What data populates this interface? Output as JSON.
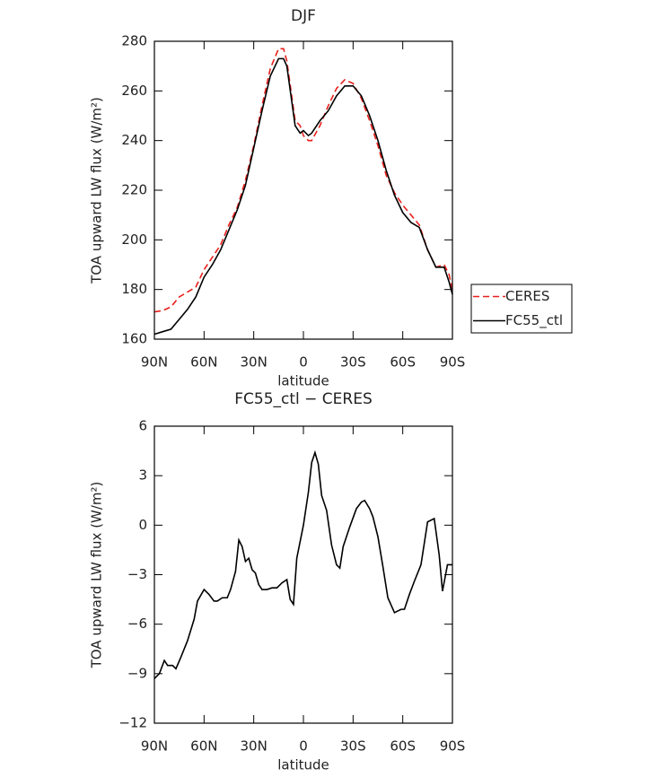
{
  "chart_data": [
    {
      "type": "line",
      "title": "DJF",
      "xlabel": "latitude",
      "ylabel": "TOA upward LW flux (W/m²)",
      "x": [
        90,
        85,
        80,
        75,
        70,
        65,
        60,
        55,
        50,
        45,
        40,
        35,
        30,
        25,
        20,
        15,
        12,
        10,
        5,
        2,
        0,
        -3,
        -5,
        -10,
        -15,
        -20,
        -25,
        -30,
        -35,
        -40,
        -45,
        -50,
        -55,
        -60,
        -65,
        -70,
        -75,
        -80,
        -85,
        -88,
        -90
      ],
      "series": [
        {
          "name": "CERES",
          "color": "#e8201c",
          "dash": true,
          "values": [
            171,
            171.5,
            173,
            177,
            179,
            181,
            188,
            193,
            198,
            206,
            213,
            224,
            238,
            254,
            269,
            277,
            277,
            272,
            248,
            246,
            242,
            240,
            240,
            246,
            254,
            261,
            264.5,
            263,
            257,
            248,
            238,
            226,
            219,
            214,
            210,
            206,
            196,
            189,
            190,
            186,
            180
          ]
        },
        {
          "name": "FC55_ctl",
          "color": "#000000",
          "dash": false,
          "values": [
            162,
            163,
            164,
            168,
            172,
            177,
            185,
            190,
            196,
            204,
            212,
            222,
            237,
            252,
            266,
            273,
            273,
            270,
            246,
            243,
            244,
            242,
            243,
            248,
            252,
            258,
            262,
            262,
            258,
            250,
            240,
            228,
            218,
            211,
            207,
            205,
            196,
            189,
            189,
            183,
            178
          ]
        }
      ],
      "xlim": [
        90,
        -90
      ],
      "xticks": [
        {
          "value": 90,
          "label": "90N"
        },
        {
          "value": 60,
          "label": "60N"
        },
        {
          "value": 30,
          "label": "30N"
        },
        0,
        {
          "value": -30,
          "label": "30S"
        },
        {
          "value": -60,
          "label": "60S"
        },
        {
          "value": -90,
          "label": "90S"
        }
      ],
      "ylim": [
        160,
        280
      ],
      "yticks": [
        160,
        180,
        200,
        220,
        240,
        260,
        280
      ],
      "legend": "right"
    },
    {
      "type": "line",
      "title": "FC55_ctl − CERES",
      "xlabel": "latitude",
      "ylabel": "TOA upward LW flux (W/m²)",
      "x": [
        90,
        87,
        84,
        82,
        79,
        77,
        74,
        70,
        66,
        64,
        60,
        57,
        54,
        52,
        49,
        46,
        44,
        41,
        39,
        37,
        35,
        33,
        31,
        29,
        27,
        25,
        22,
        19,
        16,
        13,
        10,
        8,
        6,
        4,
        0,
        -3,
        -5,
        -7,
        -9,
        -11,
        -14,
        -17,
        -20,
        -22,
        -24,
        -28,
        -32,
        -35,
        -37,
        -40,
        -42,
        -45,
        -48,
        -51,
        -55,
        -59,
        -61,
        -64,
        -67,
        -71,
        -75,
        -79,
        -82,
        -84,
        -87,
        -90
      ],
      "series": [
        {
          "color": "#000000",
          "dash": false,
          "values": [
            -9.3,
            -9.0,
            -8.2,
            -8.5,
            -8.5,
            -8.7,
            -8.0,
            -7.0,
            -5.7,
            -4.6,
            -3.9,
            -4.2,
            -4.6,
            -4.6,
            -4.4,
            -4.4,
            -3.9,
            -2.8,
            -0.9,
            -1.3,
            -2.2,
            -2.0,
            -2.7,
            -2.9,
            -3.6,
            -3.9,
            -3.9,
            -3.8,
            -3.8,
            -3.5,
            -3.3,
            -4.5,
            -4.8,
            -2.0,
            0,
            2.0,
            3.8,
            4.4,
            3.7,
            1.8,
            0.9,
            -1.2,
            -2.4,
            -2.6,
            -1.3,
            -0.1,
            1.0,
            1.4,
            1.5,
            1.0,
            0.5,
            -0.7,
            -2.5,
            -4.4,
            -5.3,
            -5.1,
            -5.1,
            -4.2,
            -3.4,
            -2.4,
            0.2,
            0.4,
            -1.8,
            -4.0,
            -2.4,
            -2.4
          ]
        }
      ],
      "xlim": [
        90,
        -90
      ],
      "xticks": [
        {
          "value": 90,
          "label": "90N"
        },
        {
          "value": 60,
          "label": "60N"
        },
        {
          "value": 30,
          "label": "30N"
        },
        0,
        {
          "value": -30,
          "label": "30S"
        },
        {
          "value": -60,
          "label": "60S"
        },
        {
          "value": -90,
          "label": "90S"
        }
      ],
      "ylim": [
        -12,
        6
      ],
      "yticks": [
        {
          "value": -12,
          "label": "−12"
        },
        {
          "value": -9,
          "label": "−9"
        },
        {
          "value": -6,
          "label": "−6"
        },
        {
          "value": -3,
          "label": "−3"
        },
        0,
        3,
        6
      ]
    }
  ]
}
